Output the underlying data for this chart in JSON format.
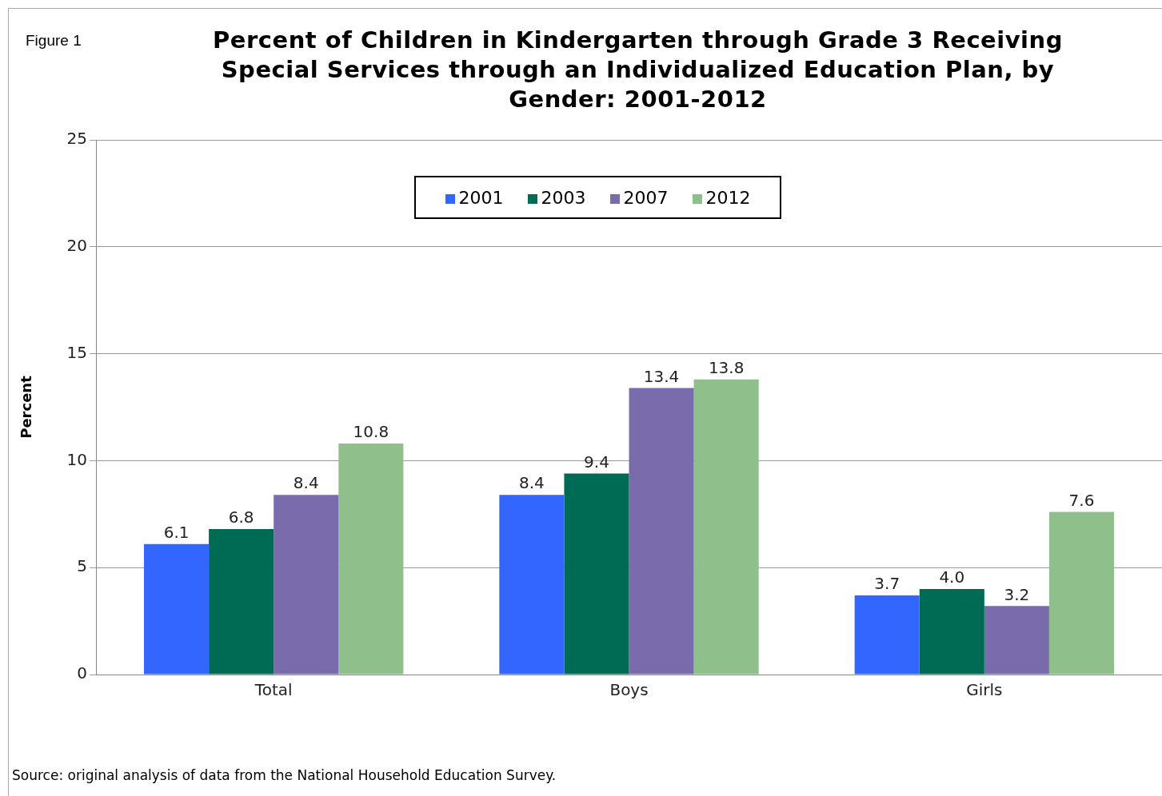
{
  "chart_data": {
    "type": "bar",
    "title": "Percent of Children in Kindergarten through Grade 3 Receiving Special Services through an Individualized Education Plan, by Gender: 2001-2012",
    "ylabel": "Percent",
    "categories": [
      "Total",
      "Boys",
      "Girls"
    ],
    "series": [
      {
        "name": "2001",
        "color": "#3366ff",
        "values": [
          6.1,
          8.4,
          3.7
        ],
        "value_labels": [
          "6.1",
          "8.4",
          "3.7"
        ]
      },
      {
        "name": "2003",
        "color": "#006b54",
        "values": [
          6.8,
          9.4,
          4.0
        ],
        "value_labels": [
          "6.8",
          "9.4",
          "4.0"
        ]
      },
      {
        "name": "2007",
        "color": "#7a6bad",
        "values": [
          8.4,
          13.4,
          3.2
        ],
        "value_labels": [
          "8.4",
          "13.4",
          "3.2"
        ]
      },
      {
        "name": "2012",
        "color": "#8fbf8a",
        "values": [
          10.8,
          13.8,
          7.6
        ],
        "value_labels": [
          "10.8",
          "13.8",
          "7.6"
        ]
      }
    ],
    "ylim": [
      0,
      25
    ],
    "yticks": [
      0,
      5,
      10,
      15,
      20,
      25
    ],
    "grid": "y",
    "legend": "top",
    "annotations": [
      "Figure 1",
      "Source: original analysis of data from the National Household Education Survey."
    ]
  }
}
